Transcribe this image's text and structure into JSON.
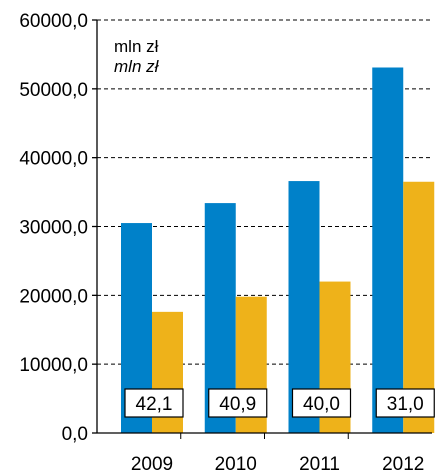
{
  "chart_data": {
    "type": "bar",
    "categories": [
      "2009",
      "2010",
      "2011",
      "2012"
    ],
    "series": [
      {
        "values": [
          30500,
          33400,
          36600,
          53100
        ]
      },
      {
        "values": [
          17600,
          19800,
          22000,
          36500
        ]
      }
    ],
    "annotations": [
      "42,1",
      "40,9",
      "40,0",
      "31,0"
    ],
    "unit_labels": [
      "mln zł",
      "mln zł"
    ],
    "y_ticks": [
      "0,0",
      "10000,0",
      "20000,0",
      "30000,0",
      "40000,0",
      "50000,0",
      "60000,0"
    ],
    "ylim": [
      0,
      60000
    ],
    "grid": true,
    "colors": {
      "series1": "#0081c9",
      "series2": "#eeb21a",
      "axis": "#000000",
      "grid": "#000000"
    }
  }
}
